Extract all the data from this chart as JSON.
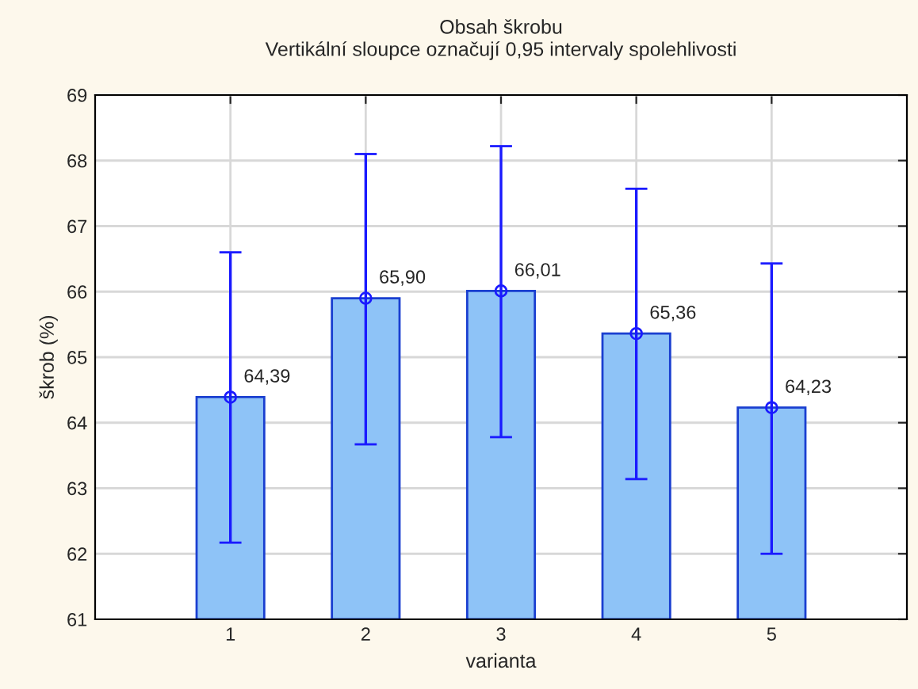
{
  "chart_data": {
    "type": "bar",
    "title": "Obsah škrobu",
    "subtitle": "Vertikální sloupce označují 0,95 intervaly spolehlivosti",
    "xlabel": "varianta",
    "ylabel": "škrob (%)",
    "categories": [
      "1",
      "2",
      "3",
      "4",
      "5"
    ],
    "series": [
      {
        "color": "#8ec3f7",
        "values": [
          64.39,
          65.9,
          66.01,
          65.36,
          64.23
        ],
        "value_labels": [
          "64,39",
          "65,90",
          "66,01",
          "65,36",
          "64,23"
        ],
        "errors": [
          [
            62.17,
            66.6
          ],
          [
            63.67,
            68.1
          ],
          [
            63.78,
            68.22
          ],
          [
            63.14,
            67.57
          ],
          [
            62.0,
            66.43
          ]
        ]
      },
      {
        "type": "scatter",
        "color": "#1a1aff",
        "x": [
          "1",
          "2",
          "3",
          "4",
          "5"
        ],
        "values": [
          64.39,
          65.9,
          66.01,
          65.36,
          64.23
        ],
        "marker": "circle"
      }
    ],
    "ylim": [
      61,
      69
    ],
    "yticks": [
      61,
      62,
      63,
      64,
      65,
      66,
      67,
      68,
      69
    ],
    "grid": true
  }
}
